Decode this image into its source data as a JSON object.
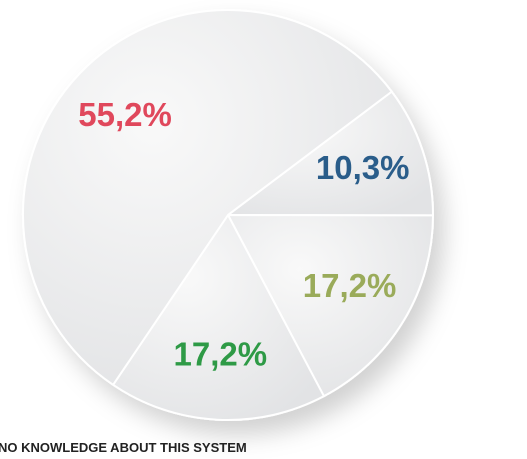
{
  "chart_data": {
    "type": "pie",
    "values": [
      10.3,
      17.2,
      17.2,
      55.2
    ],
    "value_labels": [
      "10,3%",
      "17,2%",
      "17,2%",
      "55,2%"
    ],
    "label_colors": [
      "#2a5d8a",
      "#9aab5a",
      "#2e9a46",
      "#e0485c"
    ],
    "color": "#eeeeef",
    "caption": "NO KNOWLEDGE ABOUT THIS SYSTEM"
  }
}
